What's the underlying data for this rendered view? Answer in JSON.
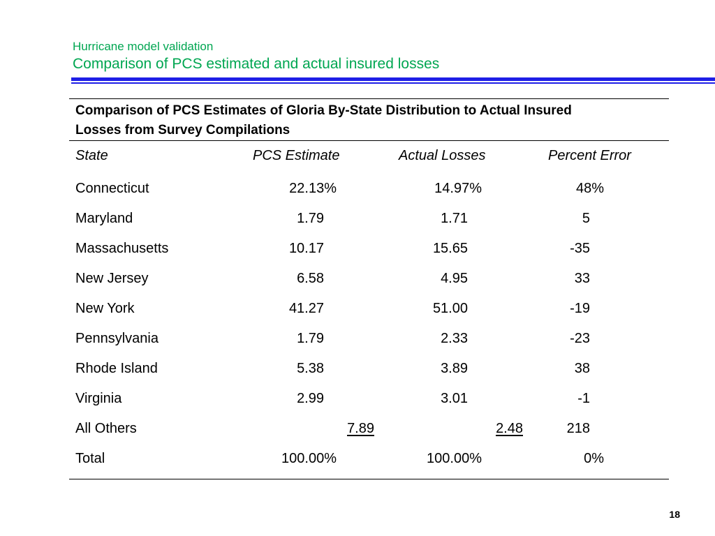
{
  "header": {
    "section": "Hurricane model validation",
    "title": "Comparison of PCS estimated and actual insured losses"
  },
  "table": {
    "caption_line1": "Comparison of PCS Estimates of Gloria By-State Distribution to Actual Insured",
    "caption_line2": "Losses  from Survey Compilations",
    "columns": [
      "State",
      "PCS Estimate",
      "Actual Losses",
      "Percent Error"
    ],
    "rows": [
      {
        "state": "Connecticut",
        "pcs": "22.13%",
        "actual": "14.97%",
        "error": "48%"
      },
      {
        "state": "Maryland",
        "pcs": "1.79",
        "actual": "1.71",
        "error": "5"
      },
      {
        "state": "Massachusetts",
        "pcs": "10.17",
        "actual": "15.65",
        "error": "-35"
      },
      {
        "state": "New Jersey",
        "pcs": "6.58",
        "actual": "4.95",
        "error": "33"
      },
      {
        "state": "New York",
        "pcs": "41.27",
        "actual": "51.00",
        "error": "-19"
      },
      {
        "state": "Pennsylvania",
        "pcs": "1.79",
        "actual": "2.33",
        "error": "-23"
      },
      {
        "state": "Rhode Island",
        "pcs": "5.38",
        "actual": "3.89",
        "error": "38"
      },
      {
        "state": "Virginia",
        "pcs": "2.99",
        "actual": "3.01",
        "error": "-1"
      },
      {
        "state": "All Others",
        "pcs": "7.89",
        "actual": "2.48",
        "error": "218"
      },
      {
        "state": "Total",
        "pcs": "100.00%",
        "actual": "100.00%",
        "error": "0%"
      }
    ]
  },
  "page_number": "18",
  "colors": {
    "title_green": "#00a651",
    "rule_blue": "#1e1ee6"
  }
}
